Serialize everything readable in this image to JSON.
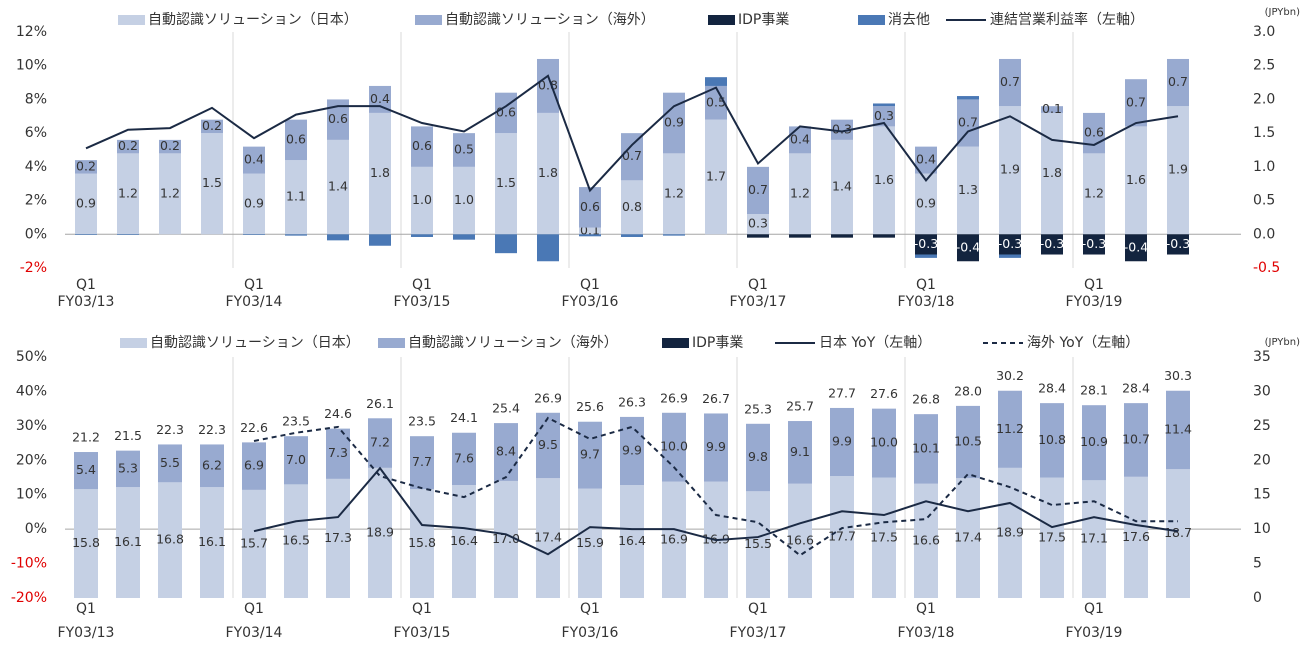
{
  "chart_data": [
    {
      "type": "bar",
      "categories": [
        "Q1",
        null,
        null,
        null,
        "Q1",
        null,
        null,
        null,
        "Q1",
        null,
        null,
        null,
        "Q1",
        null,
        null,
        null,
        "Q1",
        null,
        null,
        null,
        "Q1",
        null,
        null,
        null,
        "Q1",
        null,
        null,
        null
      ],
      "category_groups": [
        "FY03/13",
        "FY03/14",
        "FY03/15",
        "FY03/16",
        "FY03/17",
        "FY03/18",
        "FY03/19"
      ],
      "ylim": [
        -2,
        12
      ],
      "yticks": [
        {
          "value": -2,
          "label": "-2%"
        },
        {
          "value": 0,
          "label": "0%"
        },
        {
          "value": 2,
          "label": "2%"
        },
        {
          "value": 4,
          "label": "4%"
        },
        {
          "value": 6,
          "label": "6%"
        },
        {
          "value": 8,
          "label": "8%"
        },
        {
          "value": 10,
          "label": "10%"
        },
        {
          "value": 12,
          "label": "12%"
        }
      ],
      "y2lim": [
        -0.5,
        3
      ],
      "y2ticks": [
        {
          "value": -0.5,
          "label": "-0.5"
        },
        {
          "value": 0,
          "label": "0.0"
        },
        {
          "value": 0.5,
          "label": "0.5"
        },
        {
          "value": 1,
          "label": "1.0"
        },
        {
          "value": 1.5,
          "label": "1.5"
        },
        {
          "value": 2,
          "label": "2.0"
        },
        {
          "value": 2.5,
          "label": "2.5"
        },
        {
          "value": 3,
          "label": "3.0"
        }
      ],
      "y2_unit": "(JPYbn)",
      "series": [
        {
          "name": "自動認識ソリューション（日本）",
          "type": "bar",
          "axis": "y2",
          "color": "#c5d0e4",
          "values": [
            0.9,
            1.2,
            1.2,
            1.5,
            0.9,
            1.1,
            1.4,
            1.8,
            1.0,
            1.0,
            1.5,
            1.8,
            0.1,
            0.8,
            1.2,
            1.7,
            0.3,
            1.2,
            1.4,
            1.6,
            0.9,
            1.3,
            1.9,
            1.8,
            1.2,
            1.6,
            1.9,
            null
          ],
          "value_labels": [
            "0.9",
            "1.2",
            "1.2",
            "1.5",
            "0.9",
            "1.1",
            "1.4",
            "1.8",
            "1.0",
            "1.0",
            "1.5",
            "1.8",
            "0.1",
            "0.8",
            "1.2",
            "1.7",
            "0.3",
            "1.2",
            "1.4",
            "1.6",
            "0.9",
            "1.3",
            "1.9",
            "1.8",
            "1.2",
            "1.6",
            "1.9",
            null
          ]
        },
        {
          "name": "自動認識ソリューション（海外）",
          "type": "bar",
          "axis": "y2",
          "color": "#98aad0",
          "values": [
            0.2,
            0.2,
            0.2,
            0.2,
            0.4,
            0.6,
            0.6,
            0.4,
            0.6,
            0.5,
            0.6,
            0.8,
            0.6,
            0.7,
            0.9,
            0.5,
            0.7,
            0.4,
            0.3,
            0.3,
            0.4,
            0.7,
            0.7,
            0.1,
            0.6,
            0.7,
            0.7,
            null
          ],
          "value_labels": [
            "0.2",
            "0.2",
            "0.2",
            "0.2",
            "0.4",
            "0.6",
            "0.6",
            "0.4",
            "0.6",
            "0.5",
            "0.6",
            "0.8",
            "0.6",
            "0.7",
            "0.9",
            "0.5",
            "0.7",
            "0.4",
            "0.3",
            "0.3",
            "0.4",
            "0.7",
            "0.7",
            "0.1",
            "0.6",
            "0.7",
            "0.7",
            null
          ]
        },
        {
          "name": "IDP事業",
          "type": "bar",
          "axis": "y2",
          "color": "#13243f",
          "values": [
            null,
            null,
            null,
            null,
            null,
            null,
            null,
            null,
            null,
            null,
            null,
            null,
            null,
            null,
            null,
            null,
            -0.05,
            -0.05,
            -0.05,
            -0.05,
            -0.3,
            -0.4,
            -0.3,
            -0.3,
            -0.3,
            -0.4,
            -0.3,
            null
          ],
          "value_labels": [
            null,
            null,
            null,
            null,
            null,
            null,
            null,
            null,
            null,
            null,
            null,
            null,
            null,
            null,
            null,
            null,
            null,
            null,
            null,
            null,
            "-0.3",
            "-0.4",
            "-0.3",
            "-0.3",
            "-0.3",
            "-0.4",
            "-0.3",
            null
          ]
        },
        {
          "name": "消去他",
          "type": "bar",
          "axis": "y2",
          "color": "#4a78b5",
          "values": [
            -0.01,
            -0.01,
            0,
            0,
            -0.01,
            -0.02,
            -0.09,
            -0.17,
            -0.04,
            -0.08,
            -0.28,
            -0.4,
            -0.03,
            -0.04,
            -0.02,
            0.13,
            0,
            0,
            0,
            0.04,
            -0.05,
            0.05,
            -0.05,
            0,
            0,
            0,
            0,
            null
          ]
        },
        {
          "name": "連結営業利益率（左軸）",
          "type": "line",
          "color": "#1b2a44",
          "values": [
            5.1,
            6.2,
            6.3,
            7.5,
            5.7,
            7.1,
            7.6,
            7.6,
            6.6,
            6.1,
            7.6,
            9.4,
            2.6,
            5.3,
            7.6,
            8.7,
            4.2,
            6.4,
            6.1,
            6.6,
            3.2,
            6.1,
            7.0,
            5.6,
            5.3,
            6.6,
            7.0,
            null
          ]
        }
      ]
    },
    {
      "type": "bar",
      "categories": [
        "Q1",
        null,
        null,
        null,
        "Q1",
        null,
        null,
        null,
        "Q1",
        null,
        null,
        null,
        "Q1",
        null,
        null,
        null,
        "Q1",
        null,
        null,
        null,
        "Q1",
        null,
        null,
        null,
        "Q1",
        null,
        null,
        null
      ],
      "category_groups": [
        "FY03/13",
        "FY03/14",
        "FY03/15",
        "FY03/16",
        "FY03/17",
        "FY03/18",
        "FY03/19"
      ],
      "ylim": [
        -20,
        50
      ],
      "yticks": [
        {
          "value": -20,
          "label": "-20%"
        },
        {
          "value": -10,
          "label": "-10%"
        },
        {
          "value": 0,
          "label": "0%"
        },
        {
          "value": 10,
          "label": "10%"
        },
        {
          "value": 20,
          "label": "20%"
        },
        {
          "value": 30,
          "label": "30%"
        },
        {
          "value": 40,
          "label": "40%"
        },
        {
          "value": 50,
          "label": "50%"
        }
      ],
      "y2lim": [
        0,
        35
      ],
      "y2ticks": [
        0,
        5,
        10,
        15,
        20,
        25,
        30,
        35
      ],
      "y2_unit": "(JPYbn)",
      "total_labels": [
        "21.2",
        "21.5",
        "22.3",
        "22.3",
        "22.6",
        "23.5",
        "24.6",
        "26.1",
        "23.5",
        "24.1",
        "25.4",
        "26.9",
        "25.6",
        "26.3",
        "26.9",
        "26.7",
        "25.3",
        "25.7",
        "27.7",
        "27.6",
        "26.8",
        "28.0",
        "30.2",
        "28.4",
        "28.1",
        "28.4",
        "30.3",
        null
      ],
      "series": [
        {
          "name": "自動認識ソリューション（日本）",
          "type": "bar",
          "axis": "y2",
          "color": "#c5d0e4",
          "values": [
            15.8,
            16.1,
            16.8,
            16.1,
            15.7,
            16.5,
            17.3,
            18.9,
            15.8,
            16.4,
            17.0,
            17.4,
            15.9,
            16.4,
            16.9,
            16.9,
            15.5,
            16.6,
            17.7,
            17.5,
            16.6,
            17.4,
            18.9,
            17.5,
            17.1,
            17.6,
            18.7,
            null
          ],
          "value_labels": [
            "15.8",
            "16.1",
            "16.8",
            "16.1",
            "15.7",
            "16.5",
            "17.3",
            "18.9",
            "15.8",
            "16.4",
            "17.0",
            "17.4",
            "15.9",
            "16.4",
            "16.9",
            "16.9",
            "15.5",
            "16.6",
            "17.7",
            "17.5",
            "16.6",
            "17.4",
            "18.9",
            "17.5",
            "17.1",
            "17.6",
            "18.7",
            null
          ]
        },
        {
          "name": "自動認識ソリューション（海外）",
          "type": "bar",
          "axis": "y2",
          "color": "#98aad0",
          "values": [
            5.4,
            5.3,
            5.5,
            6.2,
            6.9,
            7.0,
            7.3,
            7.2,
            7.7,
            7.6,
            8.4,
            9.5,
            9.7,
            9.9,
            10.0,
            9.9,
            9.8,
            9.1,
            9.9,
            10.0,
            10.1,
            10.5,
            11.2,
            10.8,
            10.9,
            10.7,
            11.4,
            null
          ],
          "value_labels": [
            "5.4",
            "5.3",
            "5.5",
            "6.2",
            "6.9",
            "7.0",
            "7.3",
            "7.2",
            "7.7",
            "7.6",
            "8.4",
            "9.5",
            "9.7",
            "9.9",
            "10.0",
            "9.9",
            "9.8",
            "9.1",
            "9.9",
            "10.0",
            "10.1",
            "10.5",
            "11.2",
            "10.8",
            "10.9",
            "10.7",
            "11.4",
            null
          ]
        },
        {
          "name": "IDP事業",
          "type": "bar",
          "axis": "y2",
          "color": "#13243f",
          "values": [
            null,
            null,
            null,
            null,
            null,
            null,
            null,
            null,
            null,
            null,
            null,
            null,
            null,
            null,
            null,
            null,
            null,
            null,
            null,
            null,
            null,
            null,
            null,
            null,
            null,
            null,
            null,
            null
          ]
        },
        {
          "name": "日本 YoY（左軸）",
          "type": "line",
          "color": "#1b2a44",
          "values": [
            null,
            null,
            null,
            null,
            -0.6,
            2.3,
            3.5,
            17.7,
            1.2,
            0.3,
            -1.5,
            -7.3,
            0.6,
            0.0,
            0.0,
            -3.2,
            -2.3,
            1.7,
            5.2,
            4.1,
            8.1,
            5.2,
            7.6,
            0.6,
            3.5,
            1.2,
            -0.6,
            null
          ]
        },
        {
          "name": "海外 YoY（左軸）",
          "type": "line",
          "color": "#1b2a44",
          "line_style": "dashed",
          "values": [
            null,
            null,
            null,
            null,
            25.6,
            28.0,
            29.7,
            15.4,
            11.9,
            9.3,
            15.1,
            32.3,
            26.2,
            29.7,
            18.0,
            4.1,
            2.0,
            -7.6,
            0.3,
            2.0,
            2.9,
            16.0,
            12.2,
            7.0,
            8.1,
            2.3,
            2.3,
            null
          ]
        }
      ]
    }
  ]
}
